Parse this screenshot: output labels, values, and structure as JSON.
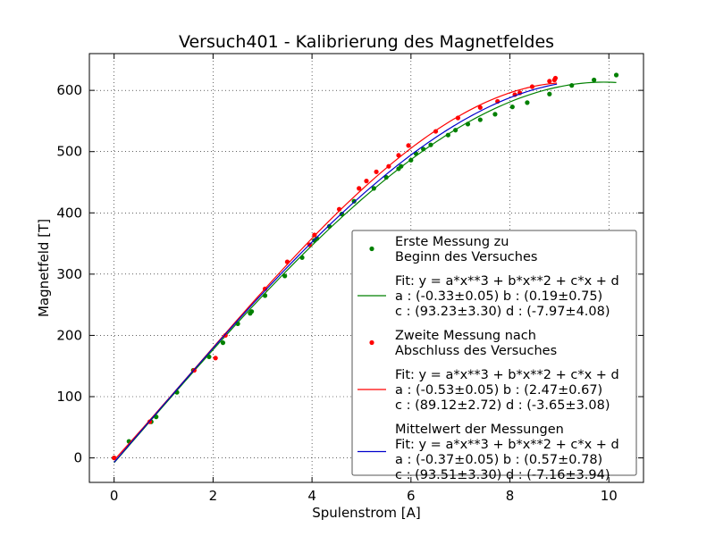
{
  "chart_data": {
    "type": "scatter",
    "title": "Versuch401 - Kalibrierung des Magnetfeldes",
    "xlabel": "Spulenstrom [A]",
    "ylabel": "Magnetfeld [T]",
    "xlim": [
      -0.5,
      10.7
    ],
    "ylim": [
      -40,
      660
    ],
    "xticks": [
      0,
      2,
      4,
      6,
      8,
      10
    ],
    "yticks": [
      0,
      100,
      200,
      300,
      400,
      500,
      600
    ],
    "xtick_labels": [
      "0",
      "2",
      "4",
      "6",
      "8",
      "10"
    ],
    "ytick_labels": [
      "0",
      "100",
      "200",
      "300",
      "400",
      "500",
      "600"
    ],
    "grid": true,
    "legend_position": "lower-right",
    "colors": {
      "series1": "#008000",
      "series2": "#ff0000",
      "series3": "#0000cc"
    },
    "series": [
      {
        "kind": "scatter",
        "color": "#008000",
        "legend_lines": [
          "Erste Messung zu",
          "Beginn des Versuches"
        ],
        "points": [
          [
            0.0,
            0
          ],
          [
            0.3,
            27
          ],
          [
            0.75,
            59
          ],
          [
            0.85,
            67
          ],
          [
            1.27,
            107
          ],
          [
            1.6,
            143
          ],
          [
            1.92,
            165
          ],
          [
            2.2,
            188
          ],
          [
            2.5,
            219
          ],
          [
            2.75,
            236
          ],
          [
            2.78,
            239
          ],
          [
            3.05,
            265
          ],
          [
            3.45,
            297
          ],
          [
            3.8,
            327
          ],
          [
            4.05,
            355
          ],
          [
            4.1,
            358
          ],
          [
            4.35,
            378
          ],
          [
            4.6,
            398
          ],
          [
            4.85,
            419
          ],
          [
            5.25,
            440
          ],
          [
            5.5,
            458
          ],
          [
            5.75,
            472
          ],
          [
            5.8,
            476
          ],
          [
            6.0,
            486
          ],
          [
            6.1,
            497
          ],
          [
            6.25,
            504
          ],
          [
            6.4,
            511
          ],
          [
            6.75,
            527
          ],
          [
            6.9,
            535
          ],
          [
            7.15,
            545
          ],
          [
            7.4,
            552
          ],
          [
            7.7,
            561
          ],
          [
            8.05,
            573
          ],
          [
            8.35,
            580
          ],
          [
            8.8,
            594
          ],
          [
            9.25,
            608
          ],
          [
            9.7,
            617
          ],
          [
            10.15,
            625
          ]
        ]
      },
      {
        "kind": "fit",
        "color": "#008000",
        "legend_lines": [
          "Fit: y = a*x**3 + b*x**2 + c*x + d",
          "a : (-0.33±0.05)  b : (0.19±0.75)",
          "c : (93.23±3.30)  d : (-7.97±4.08)"
        ],
        "coefficients": {
          "a": -0.33,
          "b": 0.19,
          "c": 93.23,
          "d": -7.97
        },
        "x_range": [
          0,
          10.15
        ]
      },
      {
        "kind": "scatter",
        "color": "#ff0000",
        "legend_lines": [
          "Zweite Messung nach",
          "Abschluss des Versuches"
        ],
        "points": [
          [
            0.0,
            0
          ],
          [
            0.72,
            59
          ],
          [
            1.62,
            143
          ],
          [
            2.05,
            163
          ],
          [
            2.25,
            200
          ],
          [
            3.05,
            276
          ],
          [
            3.5,
            320
          ],
          [
            3.95,
            348
          ],
          [
            4.05,
            364
          ],
          [
            4.55,
            406
          ],
          [
            4.95,
            440
          ],
          [
            5.1,
            452
          ],
          [
            5.3,
            467
          ],
          [
            5.55,
            476
          ],
          [
            5.75,
            494
          ],
          [
            5.95,
            510
          ],
          [
            6.5,
            533
          ],
          [
            6.95,
            555
          ],
          [
            7.4,
            572
          ],
          [
            7.75,
            582
          ],
          [
            8.1,
            593
          ],
          [
            8.2,
            596
          ],
          [
            8.45,
            606
          ],
          [
            8.8,
            615
          ],
          [
            8.9,
            617
          ],
          [
            8.92,
            620
          ]
        ]
      },
      {
        "kind": "fit",
        "color": "#ff0000",
        "legend_lines": [
          "Fit: y = a*x**3 + b*x**2 + c*x + d",
          "a : (-0.53±0.05)  b : (2.47±0.67)",
          "c : (89.12±2.72)  d : (-3.65±3.08)"
        ],
        "coefficients": {
          "a": -0.53,
          "b": 2.47,
          "c": 89.12,
          "d": -3.65
        },
        "x_range": [
          0,
          8.95
        ]
      },
      {
        "kind": "fit",
        "color": "#0000cc",
        "legend_lines": [
          "Mittelwert der Messungen",
          "Fit: y = a*x**3 + b*x**2 + c*x + d",
          "a : (-0.37±0.05)  b : (0.57±0.78)",
          "c : (93.51±3.30)  d : (-7.16±3.94)"
        ],
        "coefficients": {
          "a": -0.37,
          "b": 0.57,
          "c": 93.51,
          "d": -7.16
        },
        "x_range": [
          0,
          8.95
        ]
      }
    ]
  }
}
